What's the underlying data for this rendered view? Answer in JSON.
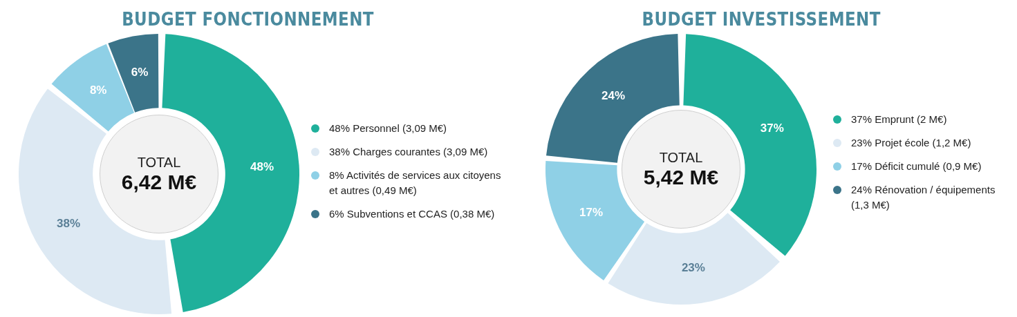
{
  "chart_data": [
    {
      "type": "donut",
      "title": "BUDGET FONCTIONNEMENT",
      "categories": [
        "48% Personnel (3,09 M€)",
        "38% Charges courantes (3,09 M€)",
        "8% Activités de services aux citoyens et autres (0,49 M€)",
        "6% Subventions et CCAS (0,38 M€)"
      ],
      "values": [
        48,
        38,
        8,
        6
      ],
      "colors": [
        "#1fb09b",
        "#dde9f3",
        "#8fd0e6",
        "#3b7489"
      ],
      "value_labels": [
        "48%",
        "38%",
        "8%",
        "6%"
      ],
      "annotations": [
        "TOTAL",
        "6,42 M€"
      ],
      "legend": "right"
    },
    {
      "type": "donut",
      "title": "BUDGET INVESTISSEMENT",
      "categories": [
        "37% Emprunt (2 M€)",
        "23% Projet école (1,2 M€)",
        "17% Déficit cumulé (0,9 M€)",
        "24% Rénovation / équipements (1,3 M€)"
      ],
      "values": [
        37,
        23,
        17,
        24
      ],
      "colors": [
        "#1fb09b",
        "#dde9f3",
        "#8fd0e6",
        "#3b7489"
      ],
      "value_labels": [
        "37%",
        "23%",
        "17%",
        "24%"
      ],
      "annotations": [
        "TOTAL",
        "5,42 M€"
      ],
      "legend": "right"
    }
  ]
}
